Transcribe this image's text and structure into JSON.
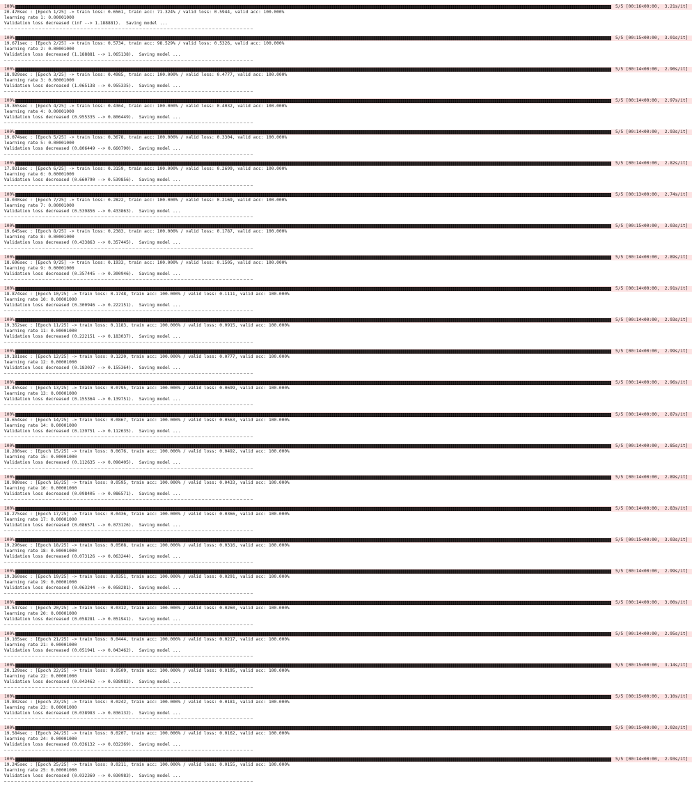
{
  "epochs": [
    {
      "pct": "100%",
      "stats": "5/5 [00:16<00:00,  3.21s/it]",
      "summary": "20.470sec : [Epoch 1/25] -> train loss: 0.6561, train acc: 71.324% / valid loss: 0.5944, valid acc: 100.000%",
      "lr": "learning rate 1: 0.00001000",
      "valid": "Validation loss decreased (inf --> 1.188881).  Saving model ...",
      "sep": "----------------------------------------------------------------------"
    },
    {
      "pct": "100%",
      "stats": "5/5 [00:15<00:00,  3.01s/it]",
      "summary": "19.671sec : [Epoch 2/25] -> train loss: 0.5734, train acc: 98.529% / valid loss: 0.5326, valid acc: 100.000%",
      "lr": "learning rate 2: 0.00001000",
      "valid": "Validation loss decreased (1.188881 --> 1.065138).  Saving model ...",
      "sep": "----------------------------------------------------------------------"
    },
    {
      "pct": "100%",
      "stats": "5/5 [00:14<00:00,  2.90s/it]",
      "summary": "18.929sec : [Epoch 3/25] -> train loss: 0.4985, train acc: 100.000% / valid loss: 0.4777, valid acc: 100.000%",
      "lr": "learning rate 3: 0.00001000",
      "valid": "Validation loss decreased (1.065138 --> 0.955335).  Saving model ...",
      "sep": "----------------------------------------------------------------------"
    },
    {
      "pct": "100%",
      "stats": "5/5 [00:14<00:00,  2.97s/it]",
      "summary": "19.365sec : [Epoch 4/25] -> train loss: 0.4364, train acc: 100.000% / valid loss: 0.4032, valid acc: 100.000%",
      "lr": "learning rate 4: 0.00001000",
      "valid": "Validation loss decreased (0.955335 --> 0.806449).  Saving model ...",
      "sep": "----------------------------------------------------------------------"
    },
    {
      "pct": "100%",
      "stats": "5/5 [00:14<00:00,  2.93s/it]",
      "summary": "19.074sec : [Epoch 5/25] -> train loss: 0.3678, train acc: 100.000% / valid loss: 0.3304, valid acc: 100.000%",
      "lr": "learning rate 5: 0.00001000",
      "valid": "Validation loss decreased (0.806449 --> 0.660790).  Saving model ...",
      "sep": "----------------------------------------------------------------------"
    },
    {
      "pct": "100%",
      "stats": "5/5 [00:14<00:00,  2.82s/it]",
      "summary": "17.931sec : [Epoch 6/25] -> train loss: 0.3159, train acc: 100.000% / valid loss: 0.2699, valid acc: 100.000%",
      "lr": "learning rate 6: 0.00001000",
      "valid": "Validation loss decreased (0.660790 --> 0.539856).  Saving model ...",
      "sep": "----------------------------------------------------------------------"
    },
    {
      "pct": "100%",
      "stats": "5/5 [00:13<00:00,  2.74s/it]",
      "summary": "18.030sec : [Epoch 7/25] -> train loss: 0.2822, train acc: 100.000% / valid loss: 0.2169, valid acc: 100.000%",
      "lr": "learning rate 7: 0.00001000",
      "valid": "Validation loss decreased (0.539856 --> 0.433863).  Saving model ...",
      "sep": "----------------------------------------------------------------------"
    },
    {
      "pct": "100%",
      "stats": "5/5 [00:15<00:00,  3.03s/it]",
      "summary": "19.645sec : [Epoch 8/25] -> train loss: 0.2383, train acc: 100.000% / valid loss: 0.1787, valid acc: 100.000%",
      "lr": "learning rate 8: 0.00001000",
      "valid": "Validation loss decreased (0.433863 --> 0.357445).  Saving model ...",
      "sep": "----------------------------------------------------------------------"
    },
    {
      "pct": "100%",
      "stats": "5/5 [00:14<00:00,  2.89s/it]",
      "summary": "18.696sec : [Epoch 9/25] -> train loss: 0.1933, train acc: 100.000% / valid loss: 0.1505, valid acc: 100.000%",
      "lr": "learning rate 9: 0.00001000",
      "valid": "Validation loss decreased (0.357445 --> 0.300946).  Saving model ...",
      "sep": "----------------------------------------------------------------------"
    },
    {
      "pct": "100%",
      "stats": "5/5 [00:14<00:00,  2.91s/it]",
      "summary": "18.874sec : [Epoch 10/25] -> train loss: 0.1748, train acc: 100.000% / valid loss: 0.1111, valid acc: 100.000%",
      "lr": "learning rate 10: 0.00001000",
      "valid": "Validation loss decreased (0.300946 --> 0.222151).  Saving model ...",
      "sep": "----------------------------------------------------------------------"
    },
    {
      "pct": "100%",
      "stats": "5/5 [00:14<00:00,  2.93s/it]",
      "summary": "19.352sec : [Epoch 11/25] -> train loss: 0.1183, train acc: 100.000% / valid loss: 0.0915, valid acc: 100.000%",
      "lr": "learning rate 11: 0.00001000",
      "valid": "Validation loss decreased (0.222151 --> 0.183037).  Saving model ...",
      "sep": "----------------------------------------------------------------------"
    },
    {
      "pct": "100%",
      "stats": "5/5 [00:14<00:00,  2.99s/it]",
      "summary": "19.181sec : [Epoch 12/25] -> train loss: 0.1220, train acc: 100.000% / valid loss: 0.0777, valid acc: 100.000%",
      "lr": "learning rate 12: 0.00001000",
      "valid": "Validation loss decreased (0.183037 --> 0.155364).  Saving model ...",
      "sep": "----------------------------------------------------------------------"
    },
    {
      "pct": "100%",
      "stats": "5/5 [00:14<00:00,  2.96s/it]",
      "summary": "19.455sec : [Epoch 13/25] -> train loss: 0.0795, train acc: 100.000% / valid loss: 0.0699, valid acc: 100.000%",
      "lr": "learning rate 13: 0.00001000",
      "valid": "Validation loss decreased (0.155364 --> 0.139751).  Saving model ...",
      "sep": "----------------------------------------------------------------------"
    },
    {
      "pct": "100%",
      "stats": "5/5 [00:14<00:00,  2.87s/it]",
      "summary": "18.654sec : [Epoch 14/25] -> train loss: 0.0867, train acc: 100.000% / valid loss: 0.0563, valid acc: 100.000%",
      "lr": "learning rate 14: 0.00001000",
      "valid": "Validation loss decreased (0.139751 --> 0.112635).  Saving model ...",
      "sep": "----------------------------------------------------------------------"
    },
    {
      "pct": "100%",
      "stats": "5/5 [00:14<00:00,  2.85s/it]",
      "summary": "18.280sec : [Epoch 15/25] -> train loss: 0.0676, train acc: 100.000% / valid loss: 0.0492, valid acc: 100.000%",
      "lr": "learning rate 15: 0.00001000",
      "valid": "Validation loss decreased (0.112635 --> 0.098405).  Saving model ...",
      "sep": "----------------------------------------------------------------------"
    },
    {
      "pct": "100%",
      "stats": "5/5 [00:14<00:00,  2.89s/it]",
      "summary": "18.980sec : [Epoch 16/25] -> train loss: 0.0595, train acc: 100.000% / valid loss: 0.0433, valid acc: 100.000%",
      "lr": "learning rate 16: 0.00001000",
      "valid": "Validation loss decreased (0.098405 --> 0.086571).  Saving model ...",
      "sep": "----------------------------------------------------------------------"
    },
    {
      "pct": "100%",
      "stats": "5/5 [00:14<00:00,  2.83s/it]",
      "summary": "18.275sec : [Epoch 17/25] -> train loss: 0.0436, train acc: 100.000% / valid loss: 0.0366, valid acc: 100.000%",
      "lr": "learning rate 17: 0.00001000",
      "valid": "Validation loss decreased (0.086571 --> 0.073126).  Saving model ...",
      "sep": "----------------------------------------------------------------------"
    },
    {
      "pct": "100%",
      "stats": "5/5 [00:15<00:00,  3.03s/it]",
      "summary": "19.290sec : [Epoch 18/25] -> train loss: 0.0508, train acc: 100.000% / valid loss: 0.0316, valid acc: 100.000%",
      "lr": "learning rate 18: 0.00001000",
      "valid": "Validation loss decreased (0.073126 --> 0.063244).  Saving model ...",
      "sep": "----------------------------------------------------------------------"
    },
    {
      "pct": "100%",
      "stats": "5/5 [00:14<00:00,  2.99s/it]",
      "summary": "19.360sec : [Epoch 19/25] -> train loss: 0.0351, train acc: 100.000% / valid loss: 0.0291, valid acc: 100.000%",
      "lr": "learning rate 19: 0.00001000",
      "valid": "Validation loss decreased (0.063244 --> 0.058281).  Saving model ...",
      "sep": "----------------------------------------------------------------------"
    },
    {
      "pct": "100%",
      "stats": "5/5 [00:14<00:00,  3.00s/it]",
      "summary": "19.547sec : [Epoch 20/25] -> train loss: 0.0312, train acc: 100.000% / valid loss: 0.0260, valid acc: 100.000%",
      "lr": "learning rate 20: 0.00001000",
      "valid": "Validation loss decreased (0.058281 --> 0.051941).  Saving model ...",
      "sep": "----------------------------------------------------------------------"
    },
    {
      "pct": "100%",
      "stats": "5/5 [00:14<00:00,  2.95s/it]",
      "summary": "19.105sec : [Epoch 21/25] -> train loss: 0.0444, train acc: 100.000% / valid loss: 0.0217, valid acc: 100.000%",
      "lr": "learning rate 21: 0.00001000",
      "valid": "Validation loss decreased (0.051941 --> 0.043462).  Saving model ...",
      "sep": "----------------------------------------------------------------------"
    },
    {
      "pct": "100%",
      "stats": "5/5 [00:15<00:00,  3.14s/it]",
      "summary": "20.129sec : [Epoch 22/25] -> train loss: 0.0509, train acc: 100.000% / valid loss: 0.0195, valid acc: 100.000%",
      "lr": "learning rate 22: 0.00001000",
      "valid": "Validation loss decreased (0.043462 --> 0.038983).  Saving model ...",
      "sep": "----------------------------------------------------------------------"
    },
    {
      "pct": "100%",
      "stats": "5/5 [00:15<00:00,  3.10s/it]",
      "summary": "19.802sec : [Epoch 23/25] -> train loss: 0.0242, train acc: 100.000% / valid loss: 0.0181, valid acc: 100.000%",
      "lr": "learning rate 23: 0.00001000",
      "valid": "Validation loss decreased (0.038983 --> 0.036132).  Saving model ...",
      "sep": "----------------------------------------------------------------------"
    },
    {
      "pct": "100%",
      "stats": "5/5 [00:15<00:00,  3.02s/it]",
      "summary": "19.584sec : [Epoch 24/25] -> train loss: 0.0207, train acc: 100.000% / valid loss: 0.0162, valid acc: 100.000%",
      "lr": "learning rate 24: 0.00001000",
      "valid": "Validation loss decreased (0.036132 --> 0.032369).  Saving model ...",
      "sep": "----------------------------------------------------------------------"
    },
    {
      "pct": "100%",
      "stats": "5/5 [00:14<00:00,  2.93s/it]",
      "summary": "19.245sec : [Epoch 25/25] -> train loss: 0.0211, train acc: 100.000% / valid loss: 0.0155, valid acc: 100.000%",
      "lr": "learning rate 25: 0.00001000",
      "valid": "Validation loss decreased (0.032369 --> 0.030983).  Saving model ...",
      "sep": "----------------------------------------------------------------------"
    }
  ],
  "colors": {
    "progress_row_bg": "#fde3e3",
    "bar_fill": "#241f1f",
    "text": "#222222",
    "background": "#ffffff"
  }
}
